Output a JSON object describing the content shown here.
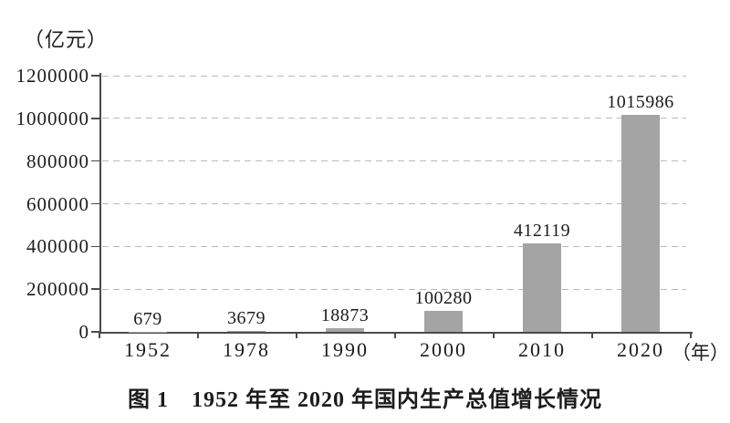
{
  "labels": {
    "y_unit": "（亿元）",
    "x_unit": "（年）",
    "title": "图 1　1952 年至 2020 年国内生产总值增长情况"
  },
  "chart_data": {
    "type": "bar",
    "title": "图 1　1952 年至 2020 年国内生产总值增长情况",
    "ylabel": "（亿元）",
    "xlabel": "（年）",
    "categories": [
      "1952",
      "1978",
      "1990",
      "2000",
      "2010",
      "2020"
    ],
    "values": [
      679,
      3679,
      18873,
      100280,
      412119,
      1015986
    ],
    "value_labels": [
      "679",
      "3679",
      "18873",
      "100280",
      "412119",
      "1015986"
    ],
    "ylim": [
      0,
      1200000
    ],
    "yticks": [
      0,
      200000,
      400000,
      600000,
      800000,
      1000000,
      1200000
    ],
    "ytick_labels": [
      "0",
      "200000",
      "400000",
      "600000",
      "800000",
      "1000000",
      "1200000"
    ],
    "grid": "horizontal-dashed",
    "legend": "none",
    "colors": {
      "bar": "#a4a4a4",
      "grid": "#b9b9b9",
      "axis": "#4a4a4a",
      "text": "#1c1c1c",
      "background": "#ffffff"
    }
  }
}
